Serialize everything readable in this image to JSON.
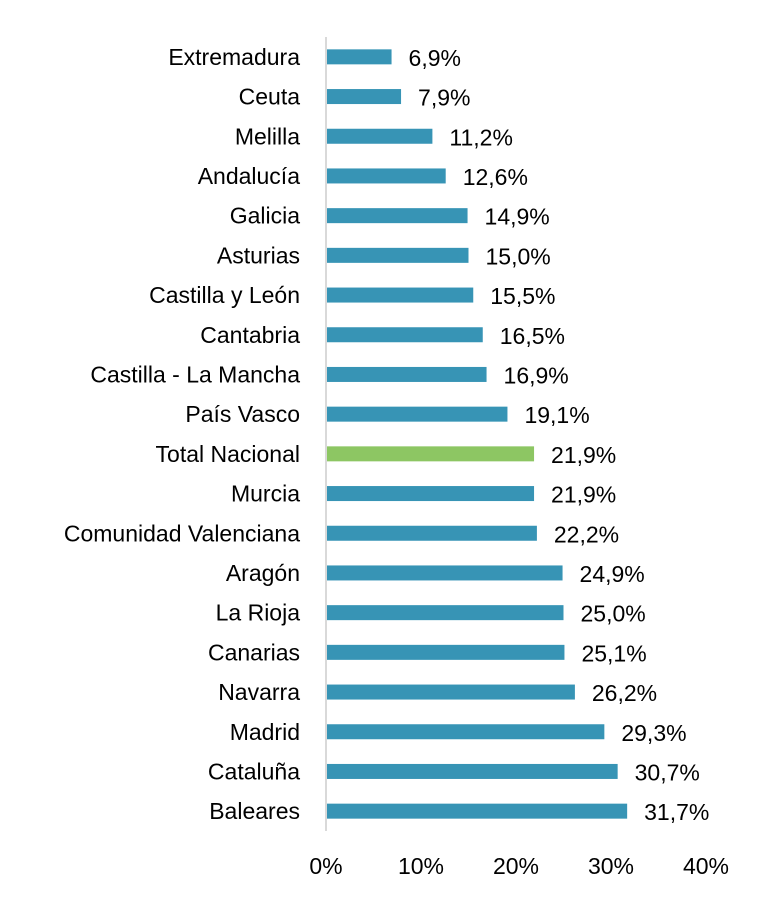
{
  "chart_data": {
    "type": "bar",
    "orientation": "horizontal",
    "title": "",
    "xlabel": "",
    "ylabel": "",
    "xlim": [
      0,
      40
    ],
    "x_ticks": [
      0,
      10,
      20,
      30,
      40
    ],
    "x_tick_labels": [
      "0%",
      "10%",
      "20%",
      "30%",
      "40%"
    ],
    "grid": false,
    "legend": "none",
    "colors": {
      "default": "#3794b5",
      "highlight": "#8dc663",
      "axis": "#d9d9d9"
    },
    "highlight_category": "Total Nacional",
    "categories": [
      "Extremadura",
      "Ceuta",
      "Melilla",
      "Andalucía",
      "Galicia",
      "Asturias",
      "Castilla y León",
      "Cantabria",
      "Castilla - La Mancha",
      "País Vasco",
      "Total Nacional",
      "Murcia",
      "Comunidad Valenciana",
      "Aragón",
      "La Rioja",
      "Canarias",
      "Navarra",
      "Madrid",
      "Cataluña",
      "Baleares"
    ],
    "values": [
      6.9,
      7.9,
      11.2,
      12.6,
      14.9,
      15.0,
      15.5,
      16.5,
      16.9,
      19.1,
      21.9,
      21.9,
      22.2,
      24.9,
      25.0,
      25.1,
      26.2,
      29.3,
      30.7,
      31.7
    ],
    "value_labels": [
      "6,9%",
      "7,9%",
      "11,2%",
      "12,6%",
      "14,9%",
      "15,0%",
      "15,5%",
      "16,5%",
      "16,9%",
      "19,1%",
      "21,9%",
      "21,9%",
      "22,2%",
      "24,9%",
      "25,0%",
      "25,1%",
      "26,2%",
      "29,3%",
      "30,7%",
      "31,7%"
    ]
  }
}
